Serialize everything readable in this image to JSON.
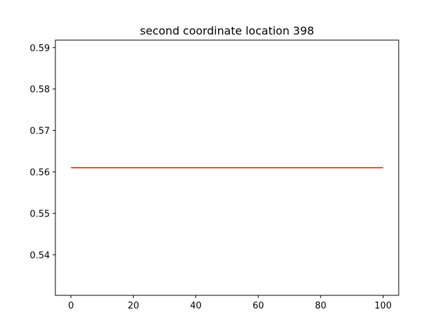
{
  "chart_data": {
    "type": "line",
    "title": "second coordinate location 398",
    "xlabel": "",
    "ylabel": "",
    "xlim": [
      -5,
      105
    ],
    "ylim": [
      0.5302,
      0.5918
    ],
    "xticks": [
      0,
      20,
      40,
      60,
      80,
      100
    ],
    "xtick_labels": [
      "0",
      "20",
      "40",
      "60",
      "80",
      "100"
    ],
    "yticks": [
      0.54,
      0.55,
      0.56,
      0.57,
      0.58,
      0.59
    ],
    "ytick_labels": [
      "0.54",
      "0.55",
      "0.56",
      "0.57",
      "0.58",
      "0.59"
    ],
    "grid": false,
    "series": [
      {
        "x": [
          0,
          100
        ],
        "y": [
          0.561,
          0.561
        ],
        "color": "#ff0000"
      }
    ]
  }
}
